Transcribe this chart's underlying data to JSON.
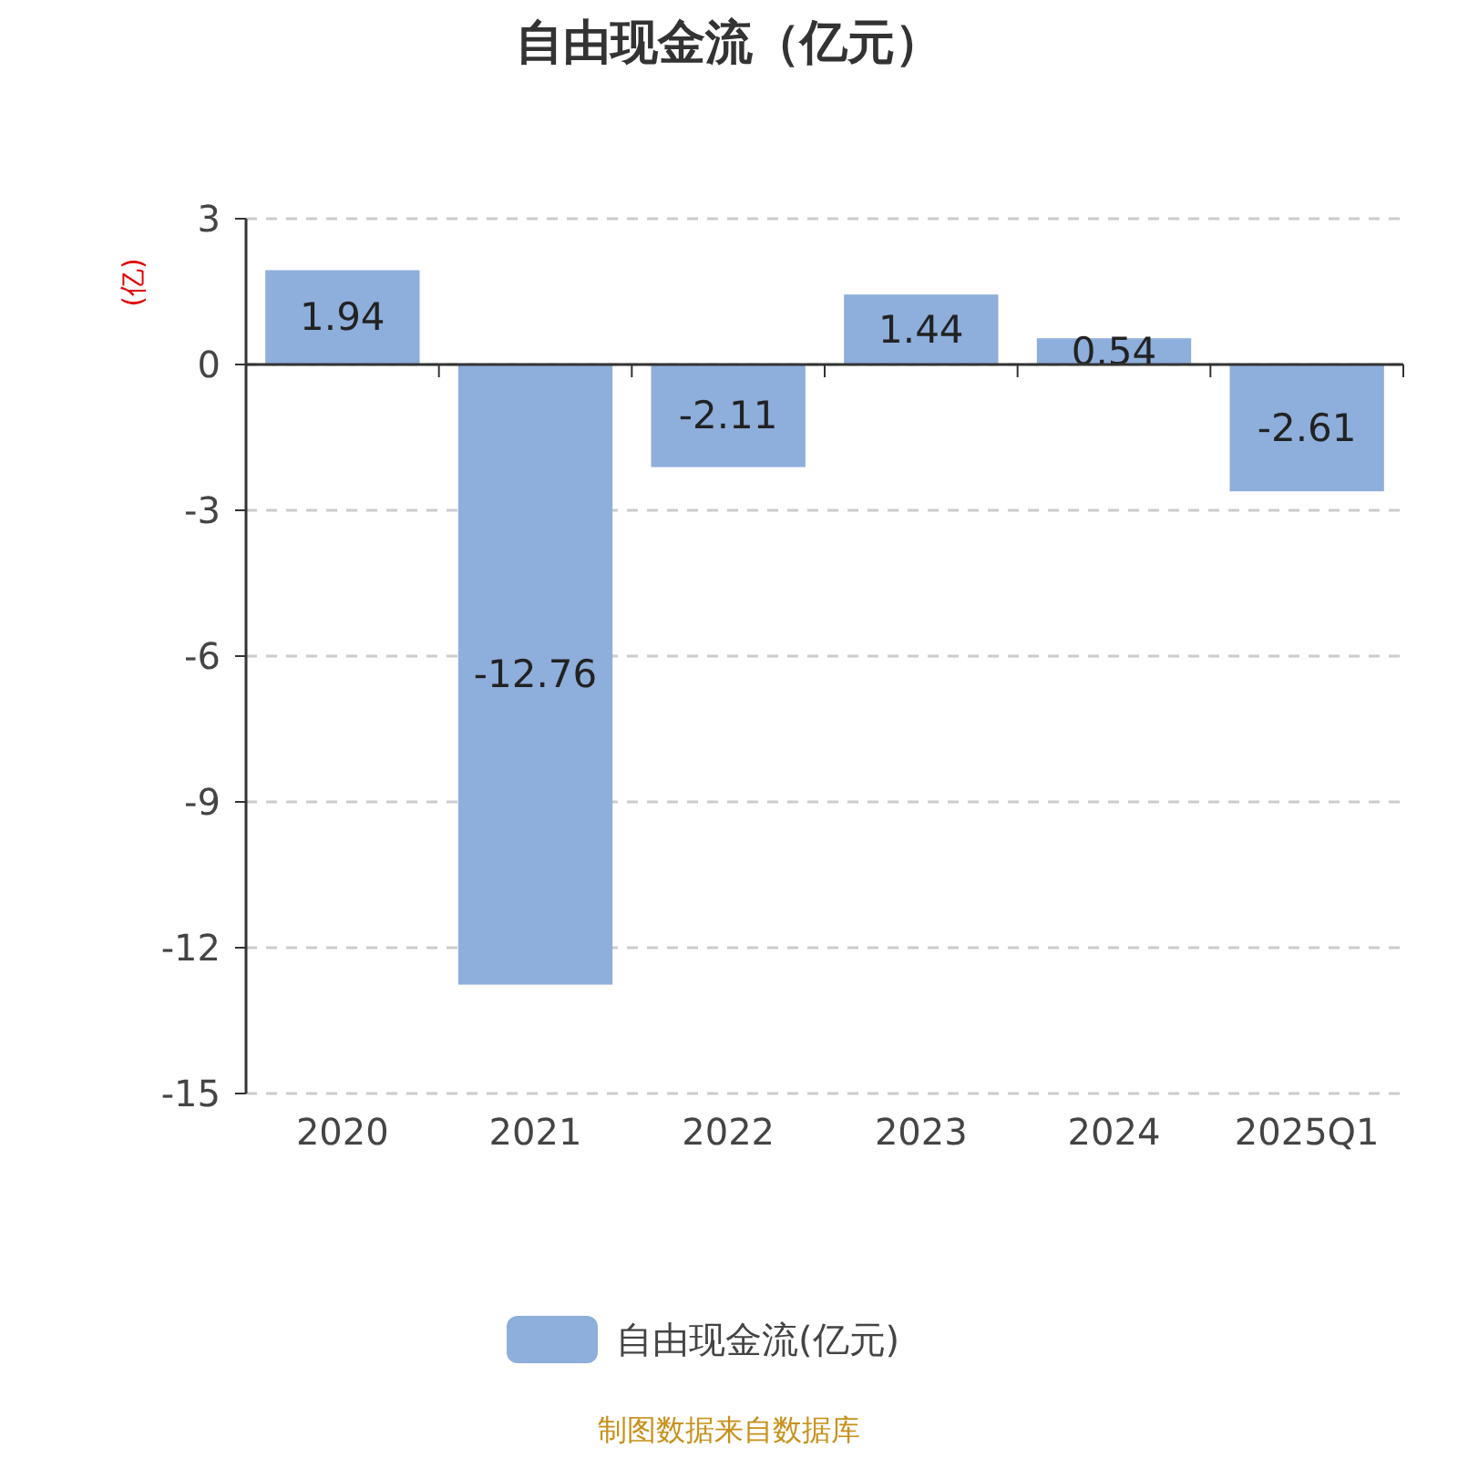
{
  "chart_data": {
    "type": "bar",
    "title": "自由现金流（亿元）",
    "ylabel": "(亿)",
    "categories": [
      "2020",
      "2021",
      "2022",
      "2023",
      "2024",
      "2025Q1"
    ],
    "series": [
      {
        "name": "自由现金流(亿元)",
        "color": "#8eaedb",
        "values": [
          1.94,
          -12.76,
          -2.11,
          1.44,
          0.54,
          -2.61
        ]
      }
    ],
    "ylim": [
      -15,
      3
    ],
    "yticks": [
      -15,
      -12,
      -9,
      -6,
      -3,
      0,
      3
    ],
    "grid": "y",
    "legend": "bottom",
    "data_labels": true,
    "annotations": [
      "制图数据来自数据库"
    ]
  }
}
